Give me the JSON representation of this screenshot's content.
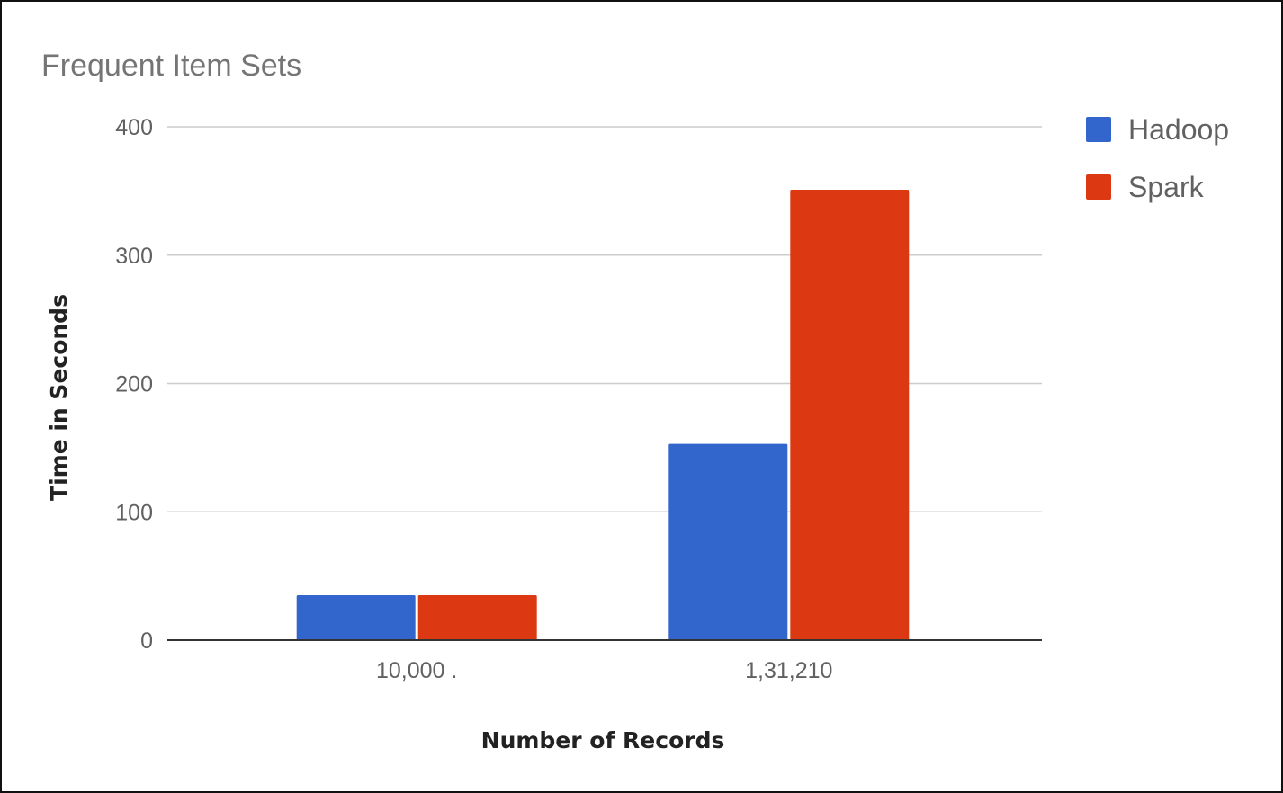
{
  "chart_data": {
    "type": "bar",
    "title": "Frequent Item Sets",
    "xlabel": "Number of Records",
    "ylabel": "Time in Seconds",
    "categories": [
      "10,000 .",
      "1,31,210"
    ],
    "series": [
      {
        "name": "Hadoop",
        "color": "#3366CC",
        "values": [
          35,
          153
        ]
      },
      {
        "name": "Spark",
        "color": "#DC3912",
        "values": [
          35,
          351
        ]
      }
    ],
    "ylim": [
      0,
      400
    ],
    "yticks": [
      0,
      100,
      200,
      300,
      400
    ],
    "grid": true,
    "legend_position": "right"
  }
}
